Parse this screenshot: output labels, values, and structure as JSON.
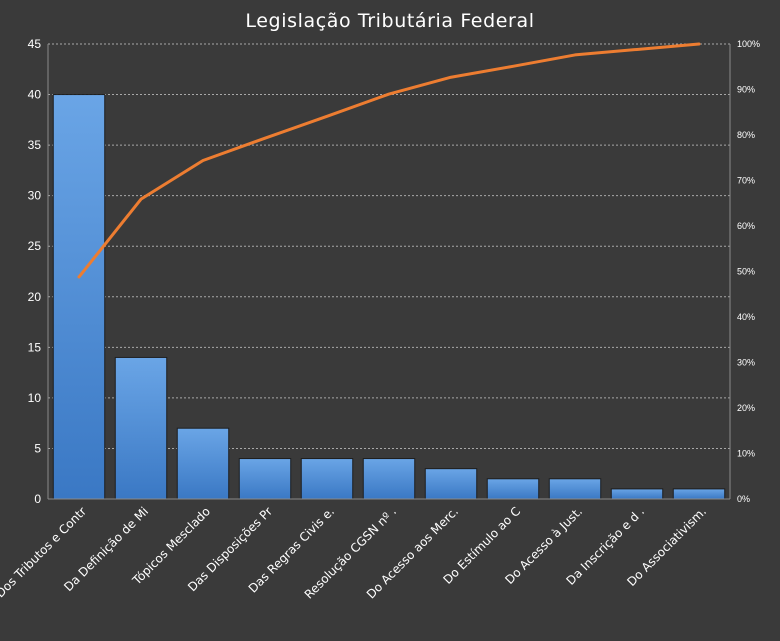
{
  "chart_data": {
    "type": "bar",
    "title": "Legislação Tributária Federal",
    "xlabel": "",
    "ylabel": "",
    "categories": [
      "Dos Tributos e Contr",
      "Da Definição de Mi",
      "Tópicos Mesclado",
      "Das Disposições Pr",
      "Das Regras Civis e.",
      "Resolução CGSN nº .",
      "Do Acesso aos Merc.",
      "Do Estímulo ao C",
      "Do Acesso à Just.",
      "Da Inscrição e d .",
      "Do Associativism."
    ],
    "series": [
      {
        "type": "bar",
        "values": [
          40,
          14,
          7,
          4,
          4,
          4,
          3,
          2,
          2,
          1,
          1
        ],
        "color": "#5a9ae0"
      },
      {
        "type": "line",
        "axis": "right",
        "values": [
          48.8,
          65.9,
          74.4,
          79.3,
          84.1,
          89.0,
          92.7,
          95.1,
          97.6,
          98.8,
          100
        ],
        "color": "#ed7d31"
      }
    ],
    "ylim": [
      0,
      45
    ],
    "yticks": [
      "0",
      "5",
      "10",
      "15",
      "20",
      "25",
      "30",
      "35",
      "40",
      "45"
    ],
    "y2lim": [
      0,
      100
    ],
    "y2ticks": [
      "0%",
      "10%",
      "20%",
      "30%",
      "40%",
      "50%",
      "60%",
      "70%",
      "80%",
      "90%",
      "100%"
    ],
    "grid": true,
    "legend": "none"
  }
}
